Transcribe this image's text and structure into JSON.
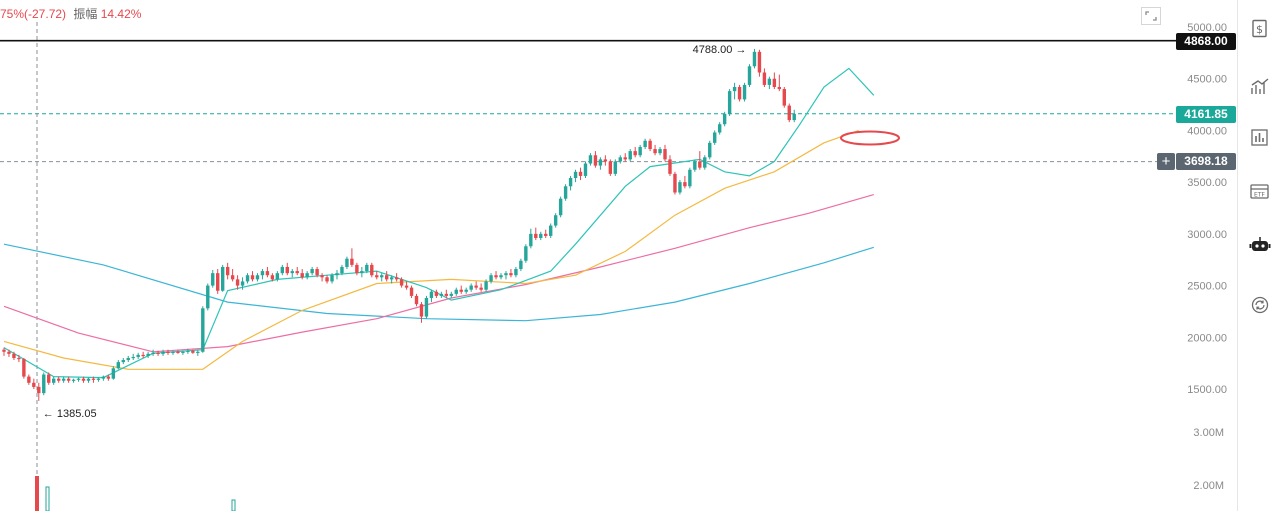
{
  "header": {
    "change_text": "75%(-27.72)",
    "amplitude_label": "振幅",
    "amplitude_value": "14.42%"
  },
  "price_tags": {
    "line_level": "4868.00",
    "current_price": "4161.85",
    "crosshair_price": "3698.18"
  },
  "annotations": {
    "high": "4788.00",
    "low": "1385.05"
  },
  "sidebar": {
    "icons": [
      "dollar-icon",
      "indicators-icon",
      "compare-icon",
      "etf-icon",
      "robot-icon",
      "refresh-icon"
    ]
  },
  "colors": {
    "up": "#26a69a",
    "down": "#e5484d",
    "ma_short": "#2ec4b6",
    "ma_mid": "#f4b942",
    "ma_long": "#ec6ea4",
    "ma_longest": "#3cb5d6",
    "accent": "#1aa89b"
  },
  "chart_data": {
    "type": "candlestick",
    "price_axis": {
      "ticks": [
        5000,
        4500,
        4000,
        3500,
        3000,
        2500,
        2000,
        1500
      ],
      "labels": [
        "5000.00",
        "4500.00",
        "4000.00",
        "3500.00",
        "3000.00",
        "2500.00",
        "2000.00",
        "1500.00"
      ]
    },
    "volume_axis": {
      "labels": [
        "3.00M",
        "2.00M"
      ]
    },
    "horizontal_line": 4868,
    "ohlc": [
      [
        1880,
        1900,
        1820,
        1860
      ],
      [
        1860,
        1880,
        1810,
        1840
      ],
      [
        1840,
        1860,
        1780,
        1800
      ],
      [
        1800,
        1830,
        1760,
        1790
      ],
      [
        1790,
        1800,
        1600,
        1620
      ],
      [
        1620,
        1640,
        1540,
        1560
      ],
      [
        1560,
        1600,
        1500,
        1520
      ],
      [
        1520,
        1560,
        1385,
        1460
      ],
      [
        1460,
        1660,
        1440,
        1640
      ],
      [
        1640,
        1660,
        1540,
        1560
      ],
      [
        1560,
        1620,
        1540,
        1600
      ],
      [
        1600,
        1620,
        1560,
        1580
      ],
      [
        1580,
        1620,
        1560,
        1600
      ],
      [
        1600,
        1620,
        1560,
        1580
      ],
      [
        1580,
        1600,
        1560,
        1590
      ],
      [
        1590,
        1610,
        1570,
        1600
      ],
      [
        1600,
        1620,
        1560,
        1580
      ],
      [
        1580,
        1610,
        1560,
        1600
      ],
      [
        1600,
        1620,
        1560,
        1590
      ],
      [
        1590,
        1610,
        1570,
        1600
      ],
      [
        1600,
        1630,
        1580,
        1620
      ],
      [
        1620,
        1640,
        1580,
        1600
      ],
      [
        1600,
        1720,
        1590,
        1700
      ],
      [
        1700,
        1780,
        1690,
        1760
      ],
      [
        1760,
        1800,
        1740,
        1780
      ],
      [
        1780,
        1820,
        1760,
        1800
      ],
      [
        1800,
        1840,
        1780,
        1810
      ],
      [
        1810,
        1850,
        1790,
        1830
      ],
      [
        1830,
        1860,
        1800,
        1820
      ],
      [
        1820,
        1860,
        1800,
        1840
      ],
      [
        1840,
        1880,
        1820,
        1850
      ],
      [
        1850,
        1870,
        1820,
        1840
      ],
      [
        1840,
        1880,
        1820,
        1860
      ],
      [
        1860,
        1880,
        1830,
        1850
      ],
      [
        1850,
        1870,
        1830,
        1860
      ],
      [
        1860,
        1880,
        1840,
        1850
      ],
      [
        1850,
        1870,
        1830,
        1860
      ],
      [
        1860,
        1890,
        1840,
        1870
      ],
      [
        1870,
        1880,
        1840,
        1850
      ],
      [
        1850,
        1880,
        1820,
        1860
      ],
      [
        1860,
        2300,
        1850,
        2280
      ],
      [
        2280,
        2520,
        2260,
        2500
      ],
      [
        2500,
        2650,
        2480,
        2620
      ],
      [
        2620,
        2660,
        2420,
        2450
      ],
      [
        2450,
        2700,
        2440,
        2680
      ],
      [
        2680,
        2720,
        2560,
        2600
      ],
      [
        2600,
        2660,
        2540,
        2560
      ],
      [
        2560,
        2600,
        2460,
        2500
      ],
      [
        2500,
        2580,
        2460,
        2540
      ],
      [
        2540,
        2620,
        2520,
        2600
      ],
      [
        2600,
        2640,
        2540,
        2560
      ],
      [
        2560,
        2620,
        2540,
        2600
      ],
      [
        2600,
        2660,
        2560,
        2640
      ],
      [
        2640,
        2680,
        2580,
        2600
      ],
      [
        2600,
        2620,
        2540,
        2560
      ],
      [
        2560,
        2640,
        2540,
        2620
      ],
      [
        2620,
        2700,
        2600,
        2680
      ],
      [
        2680,
        2720,
        2600,
        2620
      ],
      [
        2620,
        2660,
        2580,
        2640
      ],
      [
        2640,
        2680,
        2600,
        2620
      ],
      [
        2620,
        2660,
        2560,
        2580
      ],
      [
        2580,
        2640,
        2560,
        2620
      ],
      [
        2620,
        2680,
        2600,
        2660
      ],
      [
        2660,
        2680,
        2580,
        2600
      ],
      [
        2600,
        2620,
        2540,
        2580
      ],
      [
        2580,
        2600,
        2520,
        2540
      ],
      [
        2540,
        2620,
        2520,
        2600
      ],
      [
        2600,
        2650,
        2560,
        2620
      ],
      [
        2620,
        2700,
        2600,
        2680
      ],
      [
        2680,
        2780,
        2660,
        2760
      ],
      [
        2760,
        2860,
        2680,
        2700
      ],
      [
        2700,
        2720,
        2600,
        2620
      ],
      [
        2620,
        2680,
        2580,
        2640
      ],
      [
        2640,
        2720,
        2620,
        2700
      ],
      [
        2700,
        2720,
        2580,
        2600
      ],
      [
        2600,
        2640,
        2560,
        2580
      ],
      [
        2580,
        2620,
        2540,
        2600
      ],
      [
        2600,
        2640,
        2540,
        2560
      ],
      [
        2560,
        2600,
        2520,
        2580
      ],
      [
        2580,
        2620,
        2540,
        2560
      ],
      [
        2560,
        2580,
        2480,
        2500
      ],
      [
        2500,
        2540,
        2460,
        2480
      ],
      [
        2480,
        2500,
        2380,
        2400
      ],
      [
        2400,
        2420,
        2300,
        2320
      ],
      [
        2320,
        2340,
        2140,
        2200
      ],
      [
        2200,
        2400,
        2180,
        2380
      ],
      [
        2380,
        2460,
        2340,
        2440
      ],
      [
        2440,
        2460,
        2380,
        2400
      ],
      [
        2400,
        2440,
        2380,
        2420
      ],
      [
        2420,
        2460,
        2380,
        2400
      ],
      [
        2400,
        2440,
        2380,
        2420
      ],
      [
        2420,
        2480,
        2400,
        2460
      ],
      [
        2460,
        2500,
        2420,
        2440
      ],
      [
        2440,
        2480,
        2420,
        2460
      ],
      [
        2460,
        2520,
        2440,
        2500
      ],
      [
        2500,
        2540,
        2460,
        2480
      ],
      [
        2480,
        2520,
        2440,
        2460
      ],
      [
        2460,
        2560,
        2440,
        2540
      ],
      [
        2540,
        2620,
        2520,
        2600
      ],
      [
        2600,
        2640,
        2560,
        2580
      ],
      [
        2580,
        2620,
        2560,
        2600
      ],
      [
        2600,
        2640,
        2560,
        2620
      ],
      [
        2620,
        2660,
        2580,
        2600
      ],
      [
        2600,
        2680,
        2580,
        2660
      ],
      [
        2660,
        2760,
        2640,
        2740
      ],
      [
        2740,
        2900,
        2720,
        2880
      ],
      [
        2880,
        3050,
        2860,
        3000
      ],
      [
        3000,
        3060,
        2940,
        2960
      ],
      [
        2960,
        3020,
        2940,
        3000
      ],
      [
        3000,
        3040,
        2960,
        2980
      ],
      [
        2980,
        3100,
        2960,
        3080
      ],
      [
        3080,
        3200,
        3060,
        3180
      ],
      [
        3180,
        3360,
        3160,
        3340
      ],
      [
        3340,
        3480,
        3320,
        3460
      ],
      [
        3460,
        3560,
        3420,
        3540
      ],
      [
        3540,
        3620,
        3500,
        3600
      ],
      [
        3600,
        3640,
        3520,
        3560
      ],
      [
        3560,
        3700,
        3540,
        3680
      ],
      [
        3680,
        3780,
        3660,
        3760
      ],
      [
        3760,
        3800,
        3640,
        3660
      ],
      [
        3660,
        3740,
        3620,
        3720
      ],
      [
        3720,
        3760,
        3660,
        3700
      ],
      [
        3700,
        3720,
        3560,
        3580
      ],
      [
        3580,
        3720,
        3560,
        3700
      ],
      [
        3700,
        3760,
        3680,
        3740
      ],
      [
        3740,
        3780,
        3700,
        3720
      ],
      [
        3720,
        3820,
        3700,
        3800
      ],
      [
        3800,
        3840,
        3740,
        3760
      ],
      [
        3760,
        3860,
        3740,
        3840
      ],
      [
        3840,
        3920,
        3820,
        3900
      ],
      [
        3900,
        3920,
        3800,
        3820
      ],
      [
        3820,
        3860,
        3760,
        3780
      ],
      [
        3780,
        3840,
        3760,
        3820
      ],
      [
        3820,
        3860,
        3700,
        3720
      ],
      [
        3720,
        3760,
        3560,
        3580
      ],
      [
        3580,
        3600,
        3380,
        3400
      ],
      [
        3400,
        3520,
        3380,
        3500
      ],
      [
        3500,
        3560,
        3440,
        3460
      ],
      [
        3460,
        3640,
        3440,
        3620
      ],
      [
        3620,
        3720,
        3600,
        3700
      ],
      [
        3700,
        3800,
        3620,
        3640
      ],
      [
        3640,
        3760,
        3620,
        3740
      ],
      [
        3740,
        3900,
        3720,
        3880
      ],
      [
        3880,
        4000,
        3860,
        3980
      ],
      [
        3980,
        4080,
        3960,
        4060
      ],
      [
        4060,
        4180,
        4040,
        4160
      ],
      [
        4160,
        4400,
        4140,
        4380
      ],
      [
        4380,
        4460,
        4300,
        4420
      ],
      [
        4420,
        4440,
        4280,
        4300
      ],
      [
        4300,
        4460,
        4280,
        4440
      ],
      [
        4440,
        4640,
        4420,
        4620
      ],
      [
        4620,
        4788,
        4600,
        4760
      ],
      [
        4760,
        4780,
        4520,
        4560
      ],
      [
        4560,
        4600,
        4420,
        4440
      ],
      [
        4440,
        4520,
        4400,
        4500
      ],
      [
        4500,
        4560,
        4400,
        4420
      ],
      [
        4420,
        4540,
        4380,
        4400
      ],
      [
        4400,
        4420,
        4220,
        4240
      ],
      [
        4240,
        4260,
        4080,
        4100
      ],
      [
        4100,
        4200,
        4080,
        4160
      ]
    ],
    "ma_short": [
      [
        0,
        1900
      ],
      [
        10,
        1620
      ],
      [
        20,
        1610
      ],
      [
        30,
        1845
      ],
      [
        40,
        1880
      ],
      [
        45,
        2450
      ],
      [
        55,
        2560
      ],
      [
        65,
        2600
      ],
      [
        75,
        2640
      ],
      [
        85,
        2480
      ],
      [
        90,
        2360
      ],
      [
        100,
        2460
      ],
      [
        110,
        2640
      ],
      [
        115,
        2900
      ],
      [
        125,
        3460
      ],
      [
        130,
        3650
      ],
      [
        140,
        3720
      ],
      [
        145,
        3600
      ],
      [
        150,
        3560
      ],
      [
        155,
        3700
      ],
      [
        160,
        4050
      ],
      [
        165,
        4420
      ],
      [
        170,
        4600
      ],
      [
        175,
        4340
      ]
    ],
    "ma_mid": [
      [
        0,
        1960
      ],
      [
        12,
        1800
      ],
      [
        25,
        1690
      ],
      [
        40,
        1690
      ],
      [
        48,
        1960
      ],
      [
        60,
        2260
      ],
      [
        75,
        2520
      ],
      [
        90,
        2560
      ],
      [
        105,
        2520
      ],
      [
        115,
        2600
      ],
      [
        125,
        2830
      ],
      [
        135,
        3180
      ],
      [
        145,
        3440
      ],
      [
        155,
        3600
      ],
      [
        165,
        3880
      ],
      [
        172,
        4000
      ]
    ],
    "ma_long": [
      [
        0,
        2300
      ],
      [
        15,
        2040
      ],
      [
        30,
        1860
      ],
      [
        45,
        1910
      ],
      [
        60,
        2050
      ],
      [
        75,
        2180
      ],
      [
        90,
        2380
      ],
      [
        105,
        2510
      ],
      [
        120,
        2680
      ],
      [
        135,
        2860
      ],
      [
        150,
        3060
      ],
      [
        162,
        3200
      ],
      [
        175,
        3380
      ]
    ],
    "ma_longest": [
      [
        0,
        2900
      ],
      [
        20,
        2700
      ],
      [
        45,
        2340
      ],
      [
        65,
        2230
      ],
      [
        85,
        2180
      ],
      [
        105,
        2160
      ],
      [
        120,
        2220
      ],
      [
        135,
        2340
      ],
      [
        150,
        2520
      ],
      [
        165,
        2720
      ],
      [
        175,
        2870
      ]
    ]
  }
}
